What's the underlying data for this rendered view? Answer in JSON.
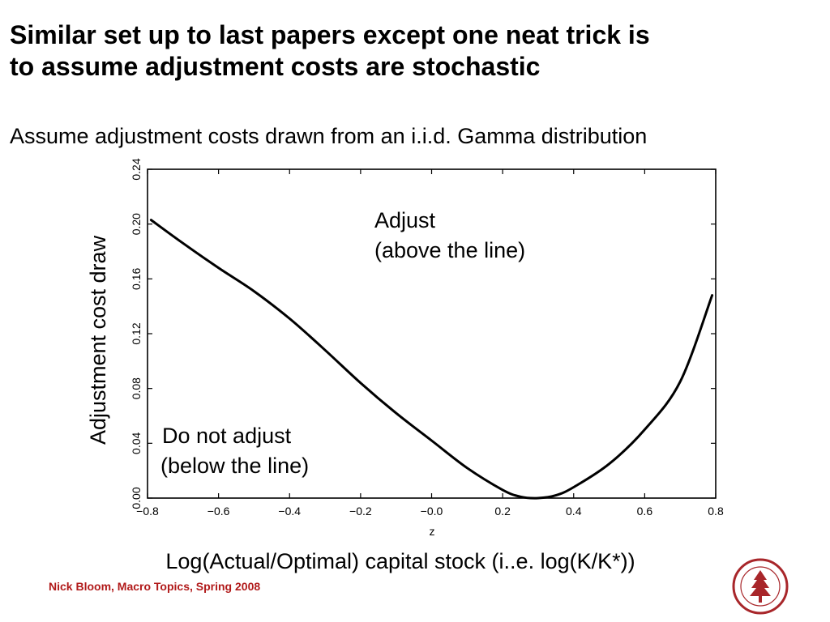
{
  "slide": {
    "title_line1": "Similar set up to last papers except one neat trick is",
    "title_line2": "to assume adjustment costs are stochastic",
    "subtitle": "Assume adjustment costs drawn from an i.i.d. Gamma distribution",
    "footer": "Nick Bloom, Macro Topics, Spring 2008",
    "seal_colour": "#a8262a"
  },
  "chart_data": {
    "type": "line",
    "xlabel": "z",
    "ylabel": "Adjustment cost draw",
    "caption": "Log(Actual/Optimal) capital stock (i..e. log(K/K*))",
    "xlim": [
      -0.8,
      0.8
    ],
    "ylim": [
      0.0,
      0.24
    ],
    "x_ticks": [
      "−0.8",
      "−0.6",
      "−0.4",
      "−0.2",
      "−0.0",
      "0.2",
      "0.4",
      "0.6",
      "0.8"
    ],
    "y_ticks": [
      "0.00",
      "0.04",
      "0.08",
      "0.12",
      "0.16",
      "0.20",
      "0.24"
    ],
    "grid": false,
    "annotations": [
      {
        "line1": "Adjust",
        "line2": "(above the line)"
      },
      {
        "line1": "Do not adjust",
        "line2": "(below the line)"
      }
    ],
    "series": [
      {
        "color": "#000000",
        "x": [
          -0.79,
          -0.7,
          -0.6,
          -0.5,
          -0.4,
          -0.3,
          -0.2,
          -0.1,
          0.0,
          0.1,
          0.2,
          0.25,
          0.3,
          0.35,
          0.4,
          0.5,
          0.6,
          0.7,
          0.79
        ],
        "y": [
          0.203,
          0.186,
          0.168,
          0.151,
          0.131,
          0.108,
          0.084,
          0.062,
          0.042,
          0.022,
          0.006,
          0.001,
          0.0,
          0.002,
          0.008,
          0.025,
          0.05,
          0.085,
          0.148
        ]
      }
    ]
  }
}
